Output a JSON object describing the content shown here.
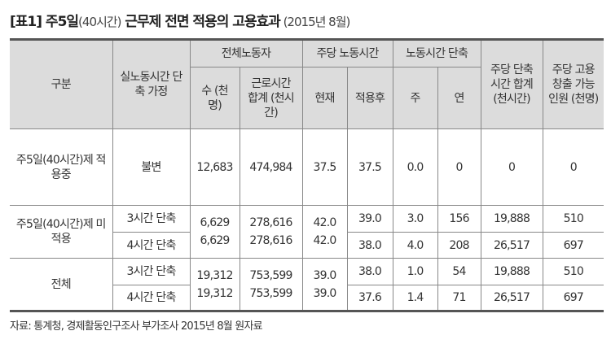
{
  "title": {
    "main": "[표1] 주5일",
    "paren": "(40시간)",
    "rest": " 근무제 전면 적용의 고용효과",
    "date": " (2015년 8월)"
  },
  "header": {
    "gubun": "구분",
    "assumption": "실노동시간 단축 가정",
    "all_workers": "전체노동자",
    "weekly_hours": "주당 노동시간",
    "reduction": "노동시간 단축",
    "weekly_total": "주당 단축시간 합계 (천시간)",
    "jobs": "주당 고용창출 가능인원 (천명)",
    "count": "수 (천명)",
    "hours_total": "근로시간 합계 (천시간)",
    "current": "현재",
    "after": "적용후",
    "week": "주",
    "year": "연"
  },
  "rows": [
    {
      "group": "주5일(40시간)제 적용중",
      "assumption": "불변",
      "count": "12,683",
      "hours": "474,984",
      "current": "37.5",
      "after": "37.5",
      "week": "0.0",
      "year": "0",
      "total": "0",
      "jobs": "0"
    },
    {
      "group": "주5일(40시간)제 미적용",
      "assumption": "3시간 단축",
      "count": "6,629",
      "hours": "278,616",
      "current": "42.0",
      "after": "39.0",
      "week": "3.0",
      "year": "156",
      "total": "19,888",
      "jobs": "510"
    },
    {
      "assumption": "4시간 단축",
      "count": "6,629",
      "hours": "278,616",
      "current": "42.0",
      "after": "38.0",
      "week": "4.0",
      "year": "208",
      "total": "26,517",
      "jobs": "697"
    },
    {
      "group": "전체",
      "assumption": "3시간 단축",
      "count": "19,312",
      "hours": "753,599",
      "current": "39.0",
      "after": "38.0",
      "week": "1.0",
      "year": "54",
      "total": "19,888",
      "jobs": "510"
    },
    {
      "assumption": "4시간 단축",
      "count": "19,312",
      "hours": "753,599",
      "current": "39.0",
      "after": "37.6",
      "week": "1.4",
      "year": "71",
      "total": "26,517",
      "jobs": "697"
    }
  ],
  "source": "자료: 통계청, 경제활동인구조사 부가조사 2015년 8월 원자료"
}
